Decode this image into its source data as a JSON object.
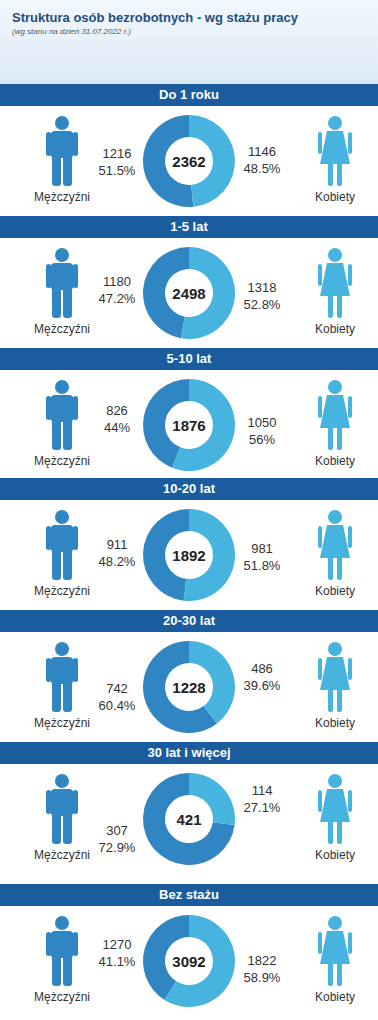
{
  "title": "Struktura osób bezrobotnych - wg stażu pracy",
  "subtitle": "(wg stanu na dzień 31.07.2022 r.)",
  "chart_data": [
    {
      "type": "pie",
      "title": "Do 1 roku",
      "total": 2362,
      "categories": [
        "Mężczyźni",
        "Kobiety"
      ],
      "values": [
        1216,
        1146
      ],
      "percent_labels": [
        "51.5%",
        "48.5%"
      ],
      "colors": [
        "#2f86c2",
        "#47b4df"
      ],
      "data_labels": true
    },
    {
      "type": "pie",
      "title": "1-5 lat",
      "total": 2498,
      "categories": [
        "Mężczyźni",
        "Kobiety"
      ],
      "values": [
        1180,
        1318
      ],
      "percent_labels": [
        "47.2%",
        "52.8%"
      ],
      "colors": [
        "#2f86c2",
        "#47b4df"
      ],
      "data_labels": true
    },
    {
      "type": "pie",
      "title": "5-10 lat",
      "total": 1876,
      "categories": [
        "Mężczyźni",
        "Kobiety"
      ],
      "values": [
        826,
        1050
      ],
      "percent_labels": [
        "44%",
        "56%"
      ],
      "colors": [
        "#2f86c2",
        "#47b4df"
      ],
      "data_labels": true
    },
    {
      "type": "pie",
      "title": "10-20 lat",
      "total": 1892,
      "categories": [
        "Mężczyźni",
        "Kobiety"
      ],
      "values": [
        911,
        981
      ],
      "percent_labels": [
        "48.2%",
        "51.8%"
      ],
      "colors": [
        "#2f86c2",
        "#47b4df"
      ],
      "data_labels": true
    },
    {
      "type": "pie",
      "title": "20-30 lat",
      "total": 1228,
      "categories": [
        "Mężczyźni",
        "Kobiety"
      ],
      "values": [
        742,
        486
      ],
      "percent_labels": [
        "60.4%",
        "39.6%"
      ],
      "colors": [
        "#2f86c2",
        "#47b4df"
      ],
      "data_labels": true
    },
    {
      "type": "pie",
      "title": "30 lat i więcej",
      "total": 421,
      "categories": [
        "Mężczyźni",
        "Kobiety"
      ],
      "values": [
        307,
        114
      ],
      "percent_labels": [
        "72.9%",
        "27.1%"
      ],
      "colors": [
        "#2f86c2",
        "#47b4df"
      ],
      "data_labels": true
    },
    {
      "type": "pie",
      "title": "Bez stażu",
      "total": 3092,
      "categories": [
        "Mężczyźni",
        "Kobiety"
      ],
      "values": [
        1270,
        1822
      ],
      "percent_labels": [
        "41.1%",
        "58.9%"
      ],
      "colors": [
        "#2f86c2",
        "#47b4df"
      ],
      "data_labels": true
    }
  ]
}
